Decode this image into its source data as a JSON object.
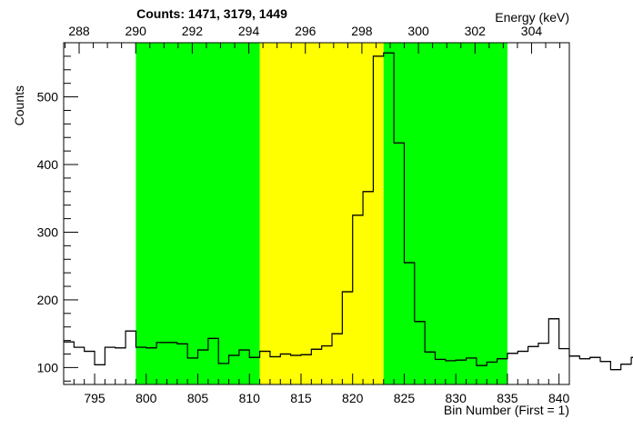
{
  "chart_data": {
    "type": "bar",
    "title": "Counts:   1471,   3179,   1449",
    "xlabel": "Bin Number (First = 1)",
    "ylabel": "Counts",
    "x2label": "Energy (keV)",
    "xlim": [
      792,
      841
    ],
    "ylim": [
      75,
      580
    ],
    "x_ticks": [
      795,
      800,
      805,
      810,
      815,
      820,
      825,
      830,
      835,
      840
    ],
    "x_tick_labels": [
      "795",
      "800",
      "805",
      "810",
      "815",
      "820",
      "825",
      "830",
      "835",
      "840"
    ],
    "y_ticks": [
      100,
      200,
      300,
      400,
      500
    ],
    "y_tick_labels": [
      "100",
      "200",
      "300",
      "400",
      "500"
    ],
    "energy_ticks": [
      288,
      290,
      292,
      294,
      296,
      298,
      300,
      302,
      304
    ],
    "energy_tick_labels": [
      "288",
      "290",
      "292",
      "294",
      "296",
      "298",
      "300",
      "302",
      "304"
    ],
    "energy_calibration": {
      "bin_at_288": 793.5,
      "bins_per_keV": 2.74
    },
    "regions": [
      {
        "name": "background-left",
        "x_start": 799,
        "x_end": 811,
        "color": "#00ff00"
      },
      {
        "name": "peak",
        "x_start": 811,
        "x_end": 823,
        "color": "#ffff00"
      },
      {
        "name": "background-right",
        "x_start": 823,
        "x_end": 835,
        "color": "#00ff00"
      }
    ],
    "bin_edges_start": 792,
    "bin_width": 1,
    "values": [
      138,
      130,
      124,
      104,
      130,
      129,
      154,
      130,
      129,
      137,
      137,
      135,
      114,
      126,
      143,
      106,
      118,
      126,
      115,
      124,
      116,
      120,
      118,
      119,
      127,
      132,
      150,
      212,
      325,
      360,
      560,
      565,
      432,
      255,
      168,
      123,
      112,
      110,
      111,
      114,
      103,
      108,
      113,
      121,
      124,
      131,
      136,
      172,
      128,
      117,
      113,
      115,
      109,
      97,
      105,
      115,
      120,
      98,
      107,
      114,
      110
    ]
  },
  "counts": [
    "1471",
    "3179",
    "1449"
  ]
}
